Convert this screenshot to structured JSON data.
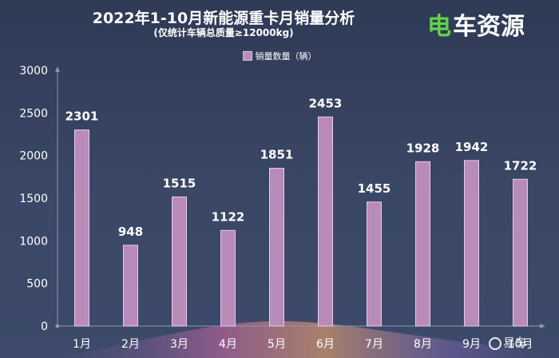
{
  "chart_data": {
    "type": "bar",
    "title": "2022年1-10月新能源重卡月销量分析",
    "subtitle": "(仅统计车辆总质量≥12000kg)",
    "categories": [
      "1月",
      "2月",
      "3月",
      "4月",
      "5月",
      "6月",
      "7月",
      "8月",
      "9月",
      "10月"
    ],
    "series": [
      {
        "name": "销量数量（辆）",
        "values": [
          2301,
          948,
          1515,
          1122,
          1851,
          2453,
          1455,
          1928,
          1942,
          1722
        ]
      }
    ],
    "yticks": [
      "0",
      "500",
      "1000",
      "1500",
      "2000",
      "2500",
      "3000"
    ],
    "ylim": [
      0,
      3000
    ],
    "legend_position": "top-center",
    "grid": false,
    "colors": {
      "bar": "#b98bb8",
      "bar_border": "#e6cde9",
      "axis": "#8a96b3",
      "wave_pink": "#e07aa8",
      "wave_orange": "#f0a56a"
    }
  },
  "branding": {
    "logo_mark": "电",
    "logo_text": "车资源",
    "watermark_text": "易车"
  }
}
